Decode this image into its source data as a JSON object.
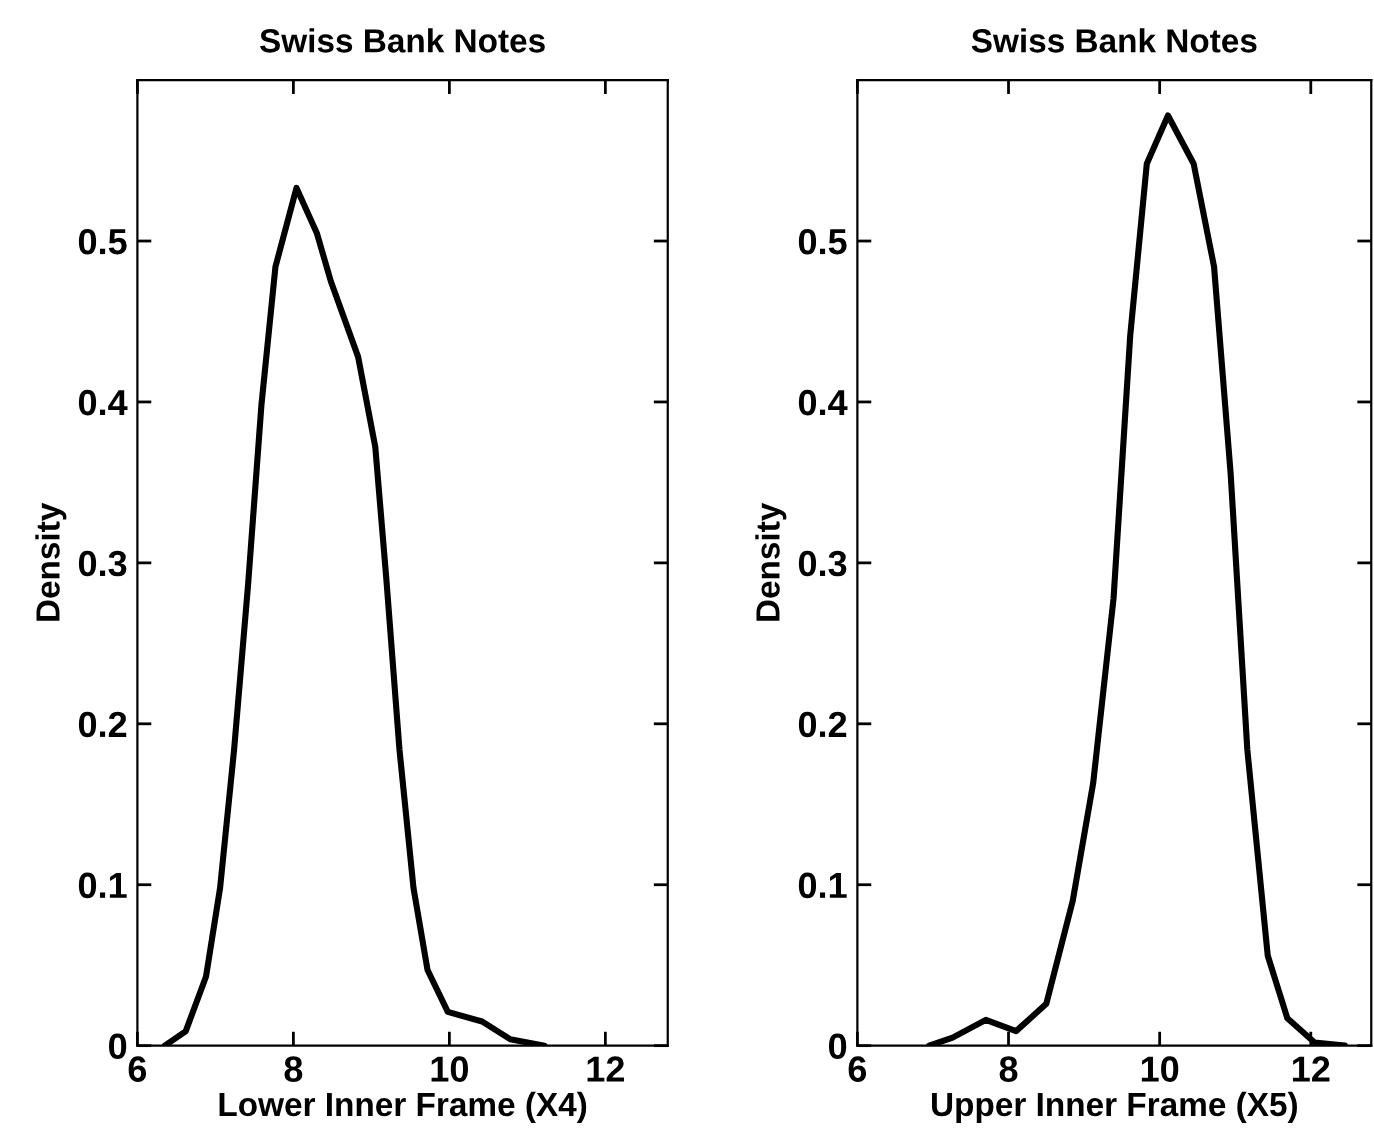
{
  "chart_data": [
    {
      "type": "line",
      "title": "Swiss Bank Notes",
      "xlabel": "Lower Inner Frame (X4)",
      "ylabel": "Density",
      "xlim": [
        6,
        12.8
      ],
      "ylim": [
        0,
        0.6
      ],
      "xticks": [
        6,
        8,
        10,
        12
      ],
      "yticks": [
        0,
        0.1,
        0.2,
        0.3,
        0.4,
        0.5
      ],
      "grid": false,
      "legend": false,
      "series": [
        {
          "color": "#000000",
          "x": [
            6.35,
            6.62,
            6.88,
            7.06,
            7.24,
            7.42,
            7.59,
            7.77,
            8.04,
            8.3,
            8.48,
            8.83,
            9.05,
            9.19,
            9.36,
            9.54,
            9.72,
            9.98,
            10.42,
            10.78,
            11.22
          ],
          "values": [
            0.0,
            0.009,
            0.043,
            0.098,
            0.184,
            0.287,
            0.398,
            0.484,
            0.533,
            0.505,
            0.475,
            0.428,
            0.372,
            0.291,
            0.184,
            0.098,
            0.047,
            0.021,
            0.015,
            0.004,
            0.0
          ]
        }
      ]
    },
    {
      "type": "line",
      "title": "Swiss Bank Notes",
      "xlabel": "Upper Inner Frame (X5)",
      "ylabel": "Density",
      "xlim": [
        6,
        12.8
      ],
      "ylim": [
        0,
        0.6
      ],
      "xticks": [
        6,
        8,
        10,
        12
      ],
      "yticks": [
        0,
        0.1,
        0.2,
        0.3,
        0.4,
        0.5
      ],
      "grid": false,
      "legend": false,
      "series": [
        {
          "color": "#000000",
          "x": [
            6.95,
            7.26,
            7.7,
            8.1,
            8.5,
            8.85,
            9.12,
            9.39,
            9.61,
            9.83,
            10.11,
            10.45,
            10.72,
            10.94,
            11.16,
            11.43,
            11.69,
            12.05,
            12.45
          ],
          "values": [
            0.0,
            0.005,
            0.016,
            0.009,
            0.026,
            0.09,
            0.163,
            0.278,
            0.441,
            0.548,
            0.578,
            0.548,
            0.484,
            0.355,
            0.184,
            0.056,
            0.017,
            0.002,
            0.0
          ]
        }
      ]
    }
  ]
}
